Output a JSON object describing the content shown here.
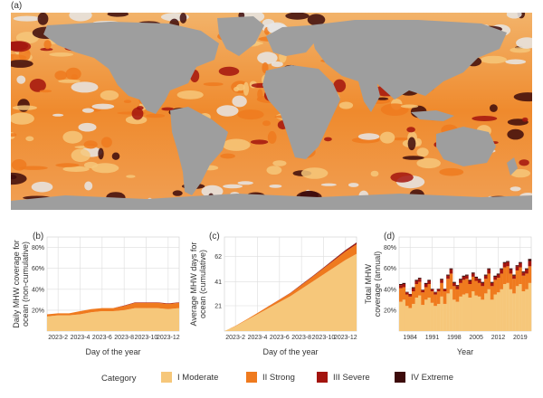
{
  "panels": {
    "a": "(a)",
    "b": "(b)",
    "c": "(c)",
    "d": "(d)"
  },
  "colors": {
    "moderate": "#f6c77a",
    "strong": "#ef7a1e",
    "severe": "#a3140e",
    "extreme": "#3d0b0b",
    "land": "#9e9e9e",
    "ocean_none": "#e6e6e6",
    "grid": "#dddddd",
    "plot_bg": "#ffffff"
  },
  "legend": {
    "title": "Category",
    "items": [
      {
        "label": "I Moderate",
        "color": "#f6c77a"
      },
      {
        "label": "II Strong",
        "color": "#ef7a1e"
      },
      {
        "label": "III Severe",
        "color": "#a3140e"
      },
      {
        "label": "IV Extreme",
        "color": "#3d0b0b"
      }
    ]
  },
  "chart_data": [
    {
      "type": "area",
      "panel": "(b)",
      "xlabel": "Day of the year",
      "ylabel": "Daily MHW coverage for ocean (non-cumulative)",
      "x_ticks": [
        "2023-2",
        "2023-4",
        "2023-6",
        "2023-8",
        "2023-10",
        "2023-12"
      ],
      "y_ticks": [
        "20%",
        "40%",
        "60%",
        "80%"
      ],
      "ylim": [
        0,
        90
      ],
      "x": [
        0,
        1,
        2,
        3,
        4,
        5,
        6,
        7,
        8,
        9,
        10,
        11,
        12
      ],
      "series": [
        {
          "name": "I Moderate",
          "values": [
            14,
            15,
            15,
            16,
            18,
            19,
            19,
            20,
            22,
            22,
            22,
            21,
            22
          ]
        },
        {
          "name": "II Strong",
          "values": [
            2,
            2,
            2,
            3,
            3,
            3,
            3,
            4,
            5,
            5,
            5,
            5,
            5
          ]
        },
        {
          "name": "III Severe",
          "values": [
            0,
            0,
            0,
            0,
            0,
            0,
            0,
            0.5,
            0.5,
            0.5,
            0.5,
            0.5,
            0.5
          ]
        },
        {
          "name": "IV Extreme",
          "values": [
            0,
            0,
            0,
            0,
            0,
            0,
            0,
            0,
            0,
            0,
            0,
            0,
            0
          ]
        }
      ],
      "grid": true
    },
    {
      "type": "area",
      "panel": "(c)",
      "xlabel": "Day of the year",
      "ylabel": "Average MHW days for ocean (cumulative)",
      "x_ticks": [
        "2023-2",
        "2023-4",
        "2023-6",
        "2023-8",
        "2023-10",
        "2023-12"
      ],
      "y_ticks": [
        "21",
        "41",
        "62"
      ],
      "ylim": [
        0,
        78
      ],
      "x": [
        0,
        1,
        2,
        3,
        4,
        5,
        6,
        7,
        8,
        9,
        10,
        11,
        12
      ],
      "series": [
        {
          "name": "I Moderate",
          "values": [
            0,
            4,
            9,
            14,
            19,
            24,
            29,
            35,
            41,
            47,
            53,
            59,
            64
          ]
        },
        {
          "name": "II Strong",
          "values": [
            0,
            0.3,
            0.6,
            1,
            1.5,
            2,
            2.5,
            3.2,
            4,
            5,
            6,
            7,
            8
          ]
        },
        {
          "name": "III Severe",
          "values": [
            0,
            0,
            0,
            0,
            0.1,
            0.2,
            0.3,
            0.4,
            0.5,
            0.6,
            0.8,
            1,
            1.2
          ]
        },
        {
          "name": "IV Extreme",
          "values": [
            0,
            0,
            0,
            0,
            0,
            0,
            0,
            0.1,
            0.1,
            0.1,
            0.2,
            0.2,
            0.3
          ]
        }
      ],
      "grid": true
    },
    {
      "type": "bar",
      "panel": "(d)",
      "xlabel": "Year",
      "ylabel": "Total MHW coverage (annual)",
      "x_ticks": [
        "1984",
        "1991",
        "1998",
        "2005",
        "2012",
        "2019"
      ],
      "y_ticks": [
        "20%",
        "40%",
        "60%",
        "80%"
      ],
      "ylim": [
        0,
        90
      ],
      "x": [
        1982,
        1983,
        1984,
        1985,
        1986,
        1987,
        1988,
        1989,
        1990,
        1991,
        1992,
        1993,
        1994,
        1995,
        1996,
        1997,
        1998,
        1999,
        2000,
        2001,
        2002,
        2003,
        2004,
        2005,
        2006,
        2007,
        2008,
        2009,
        2010,
        2011,
        2012,
        2013,
        2014,
        2015,
        2016,
        2017,
        2018,
        2019,
        2020,
        2021,
        2022,
        2023
      ],
      "series": [
        {
          "name": "I Moderate",
          "values": [
            28,
            30,
            24,
            22,
            26,
            32,
            34,
            25,
            30,
            32,
            27,
            24,
            26,
            33,
            26,
            36,
            40,
            30,
            28,
            33,
            35,
            36,
            32,
            38,
            34,
            33,
            30,
            36,
            40,
            30,
            35,
            37,
            40,
            45,
            46,
            40,
            36,
            43,
            45,
            38,
            40,
            46
          ]
        },
        {
          "name": "II Strong",
          "values": [
            13,
            12,
            11,
            11,
            12,
            13,
            13,
            12,
            12,
            13,
            11,
            11,
            12,
            13,
            12,
            14,
            15,
            13,
            12,
            13,
            14,
            14,
            13,
            14,
            14,
            13,
            13,
            14,
            15,
            13,
            14,
            14,
            15,
            16,
            16,
            15,
            14,
            15,
            16,
            15,
            15,
            16
          ]
        },
        {
          "name": "III Severe",
          "values": [
            3,
            3,
            2,
            2,
            3,
            3,
            3,
            2,
            3,
            3,
            2,
            2,
            2,
            3,
            2,
            3,
            4,
            3,
            3,
            3,
            3,
            3,
            3,
            3,
            3,
            3,
            3,
            3,
            4,
            3,
            3,
            3,
            4,
            4,
            4,
            4,
            3,
            4,
            4,
            3,
            4,
            5
          ]
        },
        {
          "name": "IV Extreme",
          "values": [
            1,
            1,
            0.5,
            0.5,
            1,
            1,
            1,
            0.5,
            1,
            1,
            0.5,
            0.5,
            0.5,
            1,
            0.5,
            1,
            1,
            1,
            1,
            1,
            1,
            1,
            1,
            1,
            1,
            1,
            1,
            1,
            1,
            1,
            1,
            1,
            1,
            1,
            1,
            1,
            1,
            1,
            1,
            1,
            1,
            2
          ]
        }
      ],
      "grid": true
    }
  ]
}
